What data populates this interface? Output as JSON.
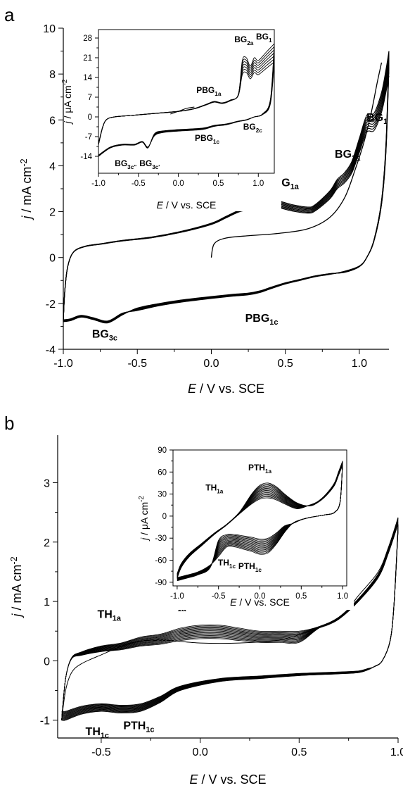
{
  "chart_data": [
    {
      "panel": "a",
      "type": "line",
      "title": "",
      "xlabel": {
        "var": "E",
        "rest": " / V vs. SCE"
      },
      "ylabel": {
        "var": "j",
        "rest": " / mA cm",
        "sup": "-2"
      },
      "xlim": [
        -1.0,
        1.2
      ],
      "ylim": [
        -4,
        10
      ],
      "xticks": [
        "-1.0",
        "-0.5",
        "0.0",
        "0.5",
        "1.0"
      ],
      "xtick_values": [
        -1.0,
        -0.5,
        0.0,
        0.5,
        1.0
      ],
      "yticks": [
        "-4",
        "-2",
        "0",
        "2",
        "4",
        "6",
        "8",
        "10"
      ],
      "ytick_values": [
        -4,
        -2,
        0,
        2,
        4,
        6,
        8,
        10
      ],
      "cycles": 8,
      "initial_scan": {
        "x": [
          0.0,
          0.02,
          0.1,
          0.25,
          0.45,
          0.65,
          0.8,
          0.9,
          0.97,
          1.03,
          1.08,
          1.12,
          1.15
        ],
        "y": [
          0.0,
          0.6,
          0.85,
          0.95,
          1.05,
          1.25,
          1.75,
          2.6,
          3.8,
          5.0,
          6.3,
          7.6,
          8.5
        ]
      },
      "anodic_scan": {
        "x": [
          -1.0,
          -0.99,
          -0.97,
          -0.93,
          -0.85,
          -0.75,
          -0.6,
          -0.4,
          -0.2,
          0.0,
          0.1,
          0.2,
          0.3,
          0.42,
          0.55,
          0.65,
          0.7,
          0.8,
          0.85,
          0.9,
          0.95,
          1.0,
          1.05,
          1.1,
          1.15,
          1.18,
          1.2
        ],
        "y": [
          -2.8,
          -1.5,
          -0.4,
          0.25,
          0.5,
          0.6,
          0.75,
          0.9,
          1.15,
          1.5,
          1.8,
          2.1,
          2.35,
          2.5,
          2.3,
          2.2,
          2.3,
          2.9,
          3.4,
          3.7,
          4.2,
          5.2,
          6.2,
          6.3,
          7.2,
          8.2,
          9.0
        ]
      },
      "cathodic_scan": {
        "x": [
          1.2,
          1.18,
          1.15,
          1.1,
          1.05,
          1.0,
          0.9,
          0.8,
          0.7,
          0.6,
          0.5,
          0.4,
          0.33,
          0.25,
          0.15,
          0.0,
          -0.2,
          -0.35,
          -0.5,
          -0.6,
          -0.7,
          -0.8,
          -0.88,
          -0.95,
          -1.0
        ],
        "y": [
          9.0,
          5.0,
          2.5,
          0.8,
          0.0,
          -0.4,
          -0.65,
          -0.7,
          -0.8,
          -0.95,
          -1.1,
          -1.3,
          -1.45,
          -1.55,
          -1.6,
          -1.7,
          -1.85,
          -2.0,
          -2.2,
          -2.5,
          -2.85,
          -2.7,
          -2.6,
          -2.75,
          -2.8
        ]
      },
      "annotations": [
        {
          "label": "BG",
          "sub": "1",
          "x": 1.12,
          "y": 5.95
        },
        {
          "label": "BG",
          "sub": "2a",
          "x": 0.92,
          "y": 4.35
        },
        {
          "label": "PBG",
          "sub": "1a",
          "x": 0.48,
          "y": 3.1
        },
        {
          "label": "PBG",
          "sub": "1c",
          "x": 0.34,
          "y": -2.8
        },
        {
          "label": "BG",
          "sub": "3c",
          "x": -0.72,
          "y": -3.5
        }
      ],
      "inset": {
        "xlabel": {
          "var": "E",
          "rest": " / V vs. SCE"
        },
        "ylabel": {
          "var": "j",
          "rest": " / μA cm",
          "sup": "-2"
        },
        "xlim": [
          -1.0,
          1.2
        ],
        "ylim": [
          -20,
          31
        ],
        "xticks": [
          "-1.0",
          "-0.5",
          "0.0",
          "0.5",
          "1.0"
        ],
        "xtick_values": [
          -1.0,
          -0.5,
          0.0,
          0.5,
          1.0
        ],
        "yticks": [
          "-14",
          "-7",
          "0",
          "7",
          "14",
          "21",
          "28"
        ],
        "ytick_values": [
          -14,
          -7,
          0,
          7,
          14,
          21,
          28
        ],
        "cycles": 7,
        "initial_scan": {
          "x": [
            -0.1,
            0.0,
            0.1,
            0.2
          ],
          "y": [
            1.0,
            2.0,
            3.0,
            3.5
          ]
        },
        "anodic_scan": {
          "x": [
            -1.0,
            -0.95,
            -0.9,
            -0.8,
            -0.6,
            -0.4,
            -0.2,
            0.0,
            0.2,
            0.35,
            0.45,
            0.55,
            0.65,
            0.75,
            0.8,
            0.85,
            0.9,
            0.95,
            1.0,
            1.1,
            1.2
          ],
          "y": [
            -10,
            -4,
            -1,
            0,
            0.5,
            1,
            1.5,
            2,
            3,
            4.5,
            5.5,
            5,
            6,
            8,
            20,
            21,
            18,
            21,
            20,
            23,
            26
          ]
        },
        "cathodic_scan": {
          "x": [
            1.2,
            1.15,
            1.05,
            0.95,
            0.85,
            0.75,
            0.6,
            0.45,
            0.3,
            0.0,
            -0.2,
            -0.3,
            -0.38,
            -0.45,
            -0.55,
            -0.7,
            -0.85,
            -1.0
          ],
          "y": [
            26,
            6,
            1,
            0,
            -1,
            -1.5,
            -2.5,
            -3,
            -4,
            -4.5,
            -5,
            -6,
            -11,
            -9,
            -10,
            -10,
            -11,
            -14
          ]
        },
        "annotations": [
          {
            "label": "BG",
            "sub": "1",
            "x": 1.07,
            "y": 27.5
          },
          {
            "label": "BG",
            "sub": "2a",
            "x": 0.82,
            "y": 26.5
          },
          {
            "label": "PBG",
            "sub": "1a",
            "x": 0.38,
            "y": 8.5
          },
          {
            "label": "PBG",
            "sub": "1c",
            "x": 0.36,
            "y": -8.5
          },
          {
            "label": "BG",
            "sub": "2c",
            "x": 0.93,
            "y": -4.5
          },
          {
            "label": "BG",
            "sub": "3c''",
            "x": -0.66,
            "y": -17.5
          },
          {
            "label": "BG",
            "sub": "3c'",
            "x": -0.36,
            "y": -17.5
          }
        ]
      }
    },
    {
      "panel": "b",
      "type": "line",
      "title": "",
      "xlabel": {
        "var": "E",
        "rest": " / V vs. SCE"
      },
      "ylabel": {
        "var": "j",
        "rest": " / mA cm",
        "sup": "-2"
      },
      "xlim": [
        -0.72,
        1.0
      ],
      "ylim": [
        -1.3,
        3.8
      ],
      "xticks": [
        "-0.5",
        "0.0",
        "0.5",
        "1.0"
      ],
      "xtick_values": [
        -0.5,
        0.0,
        0.5,
        1.0
      ],
      "yticks": [
        "-1",
        "0",
        "1",
        "2",
        "3"
      ],
      "ytick_values": [
        -1,
        0,
        1,
        2,
        3
      ],
      "cycles": 15,
      "initial_scan": {
        "x": [
          -0.7,
          -0.68,
          -0.65,
          -0.6,
          -0.5,
          -0.35,
          -0.2,
          0.0,
          0.2,
          0.4,
          0.55,
          0.7,
          0.8,
          0.9,
          0.95,
          1.0
        ],
        "y": [
          -1.0,
          -0.5,
          -0.2,
          -0.05,
          0.1,
          0.3,
          0.35,
          0.3,
          0.3,
          0.35,
          0.5,
          0.7,
          1.1,
          1.5,
          1.9,
          2.4
        ]
      },
      "anodic_scan": {
        "x": [
          -0.7,
          -0.68,
          -0.65,
          -0.6,
          -0.5,
          -0.4,
          -0.3,
          -0.2,
          -0.1,
          0.0,
          0.1,
          0.2,
          0.3,
          0.4,
          0.5,
          0.6,
          0.7,
          0.8,
          0.9,
          0.95,
          1.0
        ],
        "y": [
          -1.0,
          -0.3,
          0.05,
          0.15,
          0.25,
          0.3,
          0.4,
          0.45,
          0.55,
          0.6,
          0.6,
          0.55,
          0.5,
          0.5,
          0.5,
          0.55,
          0.7,
          1.0,
          1.4,
          1.8,
          2.3
        ]
      },
      "cathodic_scan": {
        "x": [
          1.0,
          0.98,
          0.96,
          0.92,
          0.88,
          0.85,
          0.8,
          0.7,
          0.5,
          0.3,
          0.1,
          -0.1,
          -0.2,
          -0.3,
          -0.4,
          -0.5,
          -0.6,
          -0.68,
          -0.7
        ],
        "y": [
          2.3,
          1.0,
          0.35,
          0.0,
          -0.1,
          -0.15,
          -0.2,
          -0.22,
          -0.25,
          -0.3,
          -0.35,
          -0.5,
          -0.7,
          -0.85,
          -0.88,
          -0.85,
          -0.9,
          -1.0,
          -1.0
        ]
      },
      "annotations": [
        {
          "label": "TH",
          "sub": "1a",
          "x": -0.46,
          "y": 0.72
        },
        {
          "label": "PTH",
          "sub": "1a",
          "x": -0.15,
          "y": 0.88
        },
        {
          "label": "TH",
          "sub": "1c",
          "x": -0.52,
          "y": -1.25
        },
        {
          "label": "PTH",
          "sub": "1c",
          "x": -0.31,
          "y": -1.15
        }
      ],
      "inset": {
        "xlabel": {
          "var": "E",
          "rest": " / V vs. SCE"
        },
        "ylabel": {
          "var": "j",
          "rest": " / μA cm",
          "sup": "-2"
        },
        "xlim": [
          -1.05,
          1.05
        ],
        "ylim": [
          -95,
          90
        ],
        "xticks": [
          "-1.0",
          "-0.5",
          "0.0",
          "0.5",
          "1.0"
        ],
        "xtick_values": [
          -1.0,
          -0.5,
          0.0,
          0.5,
          1.0
        ],
        "yticks": [
          "-90",
          "-60",
          "-30",
          "0",
          "30",
          "60",
          "90"
        ],
        "ytick_values": [
          -90,
          -60,
          -30,
          0,
          30,
          60,
          90
        ],
        "cycles": 15,
        "anodic_scan": {
          "x": [
            -1.0,
            -0.95,
            -0.85,
            -0.7,
            -0.55,
            -0.4,
            -0.25,
            -0.1,
            0.0,
            0.1,
            0.2,
            0.3,
            0.45,
            0.6,
            0.7,
            0.8,
            0.9,
            0.95,
            1.0
          ],
          "y": [
            -85,
            -70,
            -55,
            -40,
            -25,
            -12,
            5,
            30,
            42,
            45,
            40,
            30,
            18,
            15,
            20,
            30,
            45,
            60,
            75
          ]
        },
        "cathodic_scan": {
          "x": [
            1.0,
            0.97,
            0.9,
            0.8,
            0.7,
            0.6,
            0.5,
            0.4,
            0.3,
            0.2,
            0.1,
            0.0,
            -0.1,
            -0.2,
            -0.3,
            -0.4,
            -0.5,
            -0.6,
            -0.75,
            -0.9,
            -1.0
          ],
          "y": [
            75,
            20,
            5,
            2,
            0,
            -2,
            -5,
            -10,
            -22,
            -38,
            -50,
            -52,
            -48,
            -45,
            -42,
            -42,
            -55,
            -70,
            -80,
            -85,
            -88
          ]
        },
        "annotations": [
          {
            "label": "PTH",
            "sub": "1a",
            "x": 0.0,
            "y": 62
          },
          {
            "label": "TH",
            "sub": "1a",
            "x": -0.55,
            "y": 35
          },
          {
            "label": "TH",
            "sub": "1c",
            "x": -0.4,
            "y": -67
          },
          {
            "label": "PTH",
            "sub": "1c",
            "x": -0.12,
            "y": -72
          }
        ]
      }
    }
  ]
}
